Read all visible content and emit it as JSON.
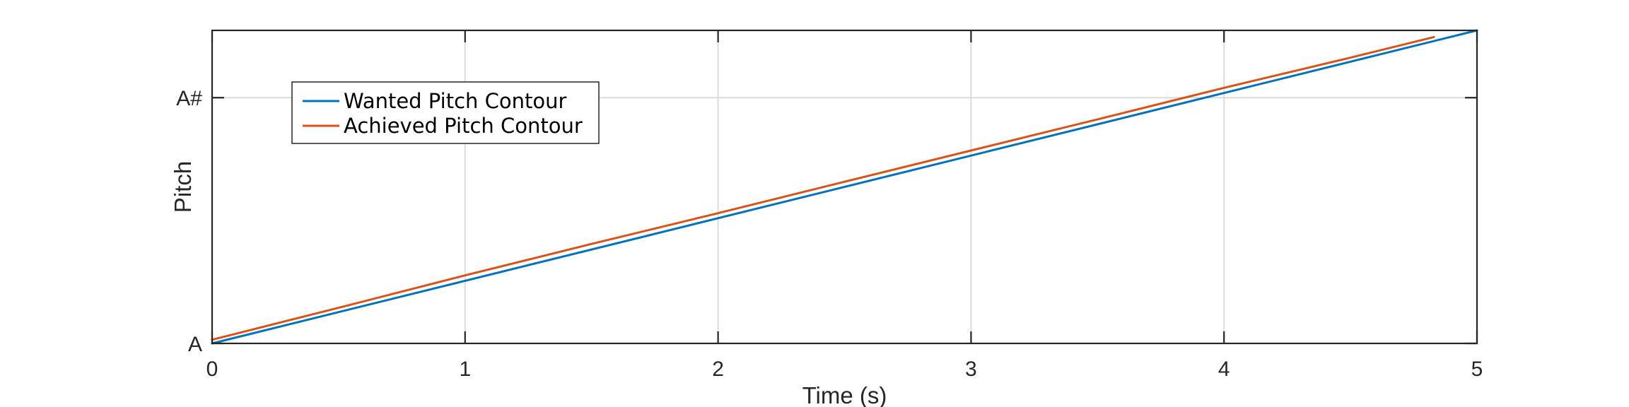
{
  "chart_data": {
    "type": "line",
    "title": "",
    "xlabel": "Time (s)",
    "ylabel": "Pitch",
    "xlim": [
      0,
      5
    ],
    "ylim": [
      0,
      1.2739
    ],
    "x_ticks": [
      0,
      1,
      2,
      3,
      4,
      5
    ],
    "x_tick_labels": [
      "0",
      "1",
      "2",
      "3",
      "4",
      "5"
    ],
    "y_ticks": [
      0,
      1
    ],
    "y_tick_labels": [
      "A",
      "A#"
    ],
    "grid": true,
    "legend_position": "top-left",
    "series": [
      {
        "name": "Wanted Pitch Contour",
        "color": "#0072BD",
        "x": [
          0,
          5
        ],
        "y": [
          0,
          1.2739
        ]
      },
      {
        "name": "Achieved Pitch Contour",
        "color": "#D95319",
        "x": [
          0,
          0.5,
          1,
          1.5,
          2,
          2.5,
          3,
          3.5,
          4,
          4.5,
          4.83
        ],
        "y": [
          0.015,
          0.145,
          0.277,
          0.405,
          0.53,
          0.658,
          0.785,
          0.912,
          1.04,
          1.163,
          1.247
        ]
      }
    ]
  }
}
